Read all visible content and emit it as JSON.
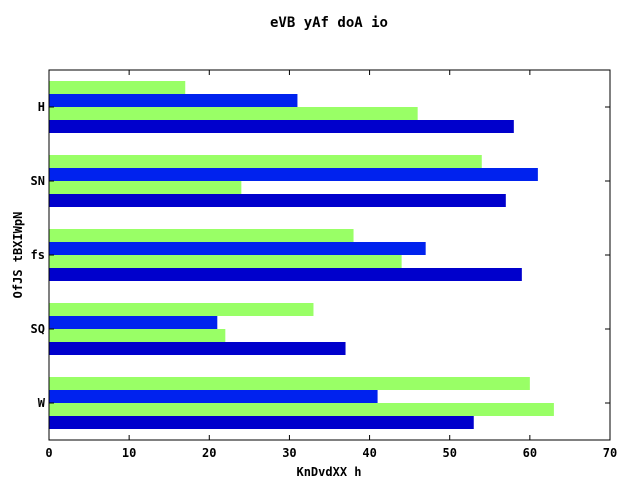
{
  "chart_data": {
    "type": "bar",
    "orientation": "horizontal",
    "title": "eVB yAf doA io",
    "xlabel": "KnDvdXX h",
    "ylabel": "OfJS tBXIWpN",
    "categories": [
      "W",
      "SQ",
      "fs",
      "SN",
      "H"
    ],
    "xlim": [
      0,
      70
    ],
    "xticks": [
      0,
      10,
      20,
      30,
      40,
      50,
      60,
      70
    ],
    "grid": false,
    "series": [
      {
        "color": "#0000cc",
        "values": [
          53,
          37,
          59,
          57,
          58
        ]
      },
      {
        "color": "#99ff66",
        "values": [
          63,
          22,
          44,
          24,
          46
        ]
      },
      {
        "color": "#0022ee",
        "values": [
          41,
          21,
          47,
          61,
          31
        ]
      },
      {
        "color": "#99ff66",
        "values": [
          60,
          33,
          38,
          54,
          17
        ]
      }
    ]
  }
}
